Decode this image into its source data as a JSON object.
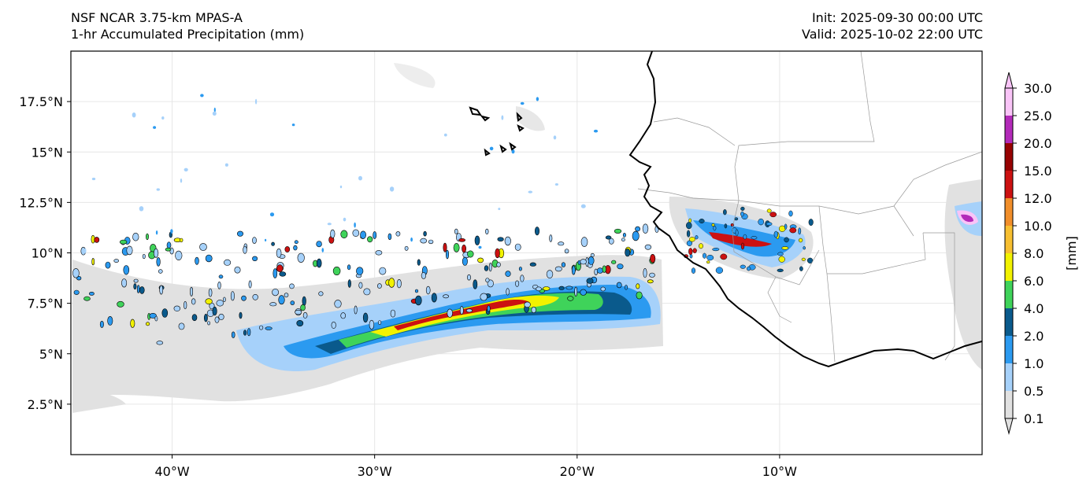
{
  "header": {
    "title_line1": "NSF NCAR 3.75-km MPAS-A",
    "title_line2": "1-hr Accumulated Precipitation (mm)",
    "init": "Init: 2025-09-30 00:00 UTC",
    "valid": "Valid: 2025-10-02 22:00 UTC"
  },
  "map": {
    "lon_range": [
      -45,
      0
    ],
    "lat_range": [
      0,
      20
    ],
    "lat_ticks": [
      {
        "value": 17.5,
        "label": "17.5°N"
      },
      {
        "value": 15,
        "label": "15°N"
      },
      {
        "value": 12.5,
        "label": "12.5°N"
      },
      {
        "value": 10,
        "label": "10°N"
      },
      {
        "value": 7.5,
        "label": "7.5°N"
      },
      {
        "value": 5,
        "label": "5°N"
      },
      {
        "value": 2.5,
        "label": "2.5°N"
      }
    ],
    "lon_ticks": [
      {
        "value": -40,
        "label": "40°W"
      },
      {
        "value": -30,
        "label": "30°W"
      },
      {
        "value": -20,
        "label": "20°W"
      },
      {
        "value": -10,
        "label": "10°W"
      }
    ],
    "gridline_color": "#e6e6e6",
    "coast_color": "#000000",
    "border_color": "#999999"
  },
  "colorbar": {
    "unit_label": "[mm]",
    "levels": [
      "0.1",
      "0.5",
      "1.0",
      "2.0",
      "4.0",
      "6.0",
      "8.0",
      "10.0",
      "12.0",
      "15.0",
      "20.0",
      "25.0",
      "30.0"
    ],
    "colors": [
      "#e1e1e1",
      "#a6d1fa",
      "#2b9af0",
      "#0a5a8c",
      "#3fd35a",
      "#f2f200",
      "#f7bf31",
      "#f18e2a",
      "#cc1111",
      "#970202",
      "#b32ab9",
      "#f9c4f7"
    ]
  }
}
